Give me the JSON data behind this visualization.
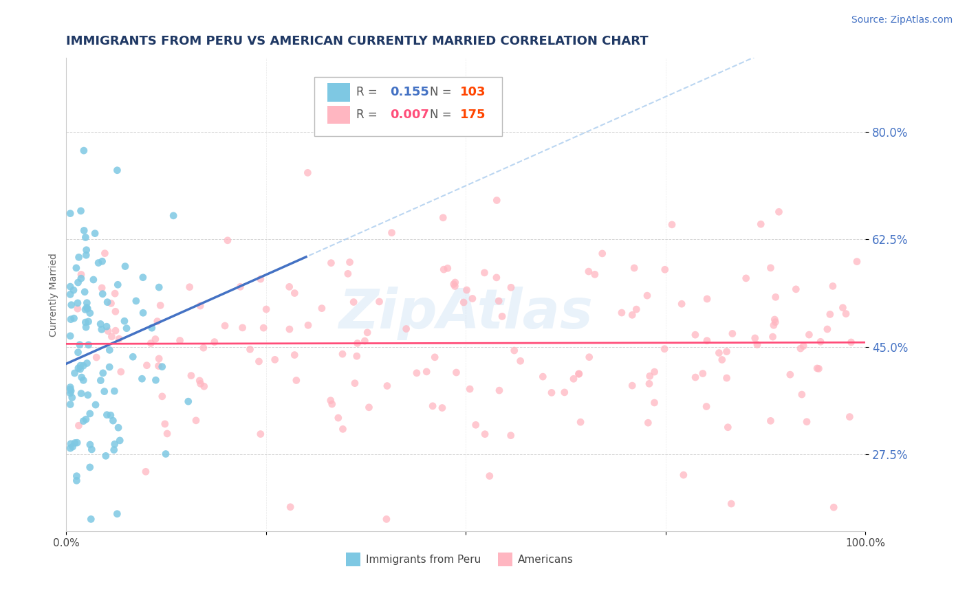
{
  "title": "IMMIGRANTS FROM PERU VS AMERICAN CURRENTLY MARRIED CORRELATION CHART",
  "source": "Source: ZipAtlas.com",
  "ylabel": "Currently Married",
  "watermark": "ZipAtlas",
  "xlim": [
    0.0,
    1.0
  ],
  "ylim": [
    0.15,
    0.92
  ],
  "yticks": [
    0.275,
    0.45,
    0.625,
    0.8
  ],
  "yticklabels": [
    "27.5%",
    "45.0%",
    "62.5%",
    "80.0%"
  ],
  "legend_blue_r": "0.155",
  "legend_blue_n": "103",
  "legend_pink_r": "0.007",
  "legend_pink_n": "175",
  "legend_blue_label": "Immigrants from Peru",
  "legend_pink_label": "Americans",
  "blue_color": "#7EC8E3",
  "pink_color": "#FFB6C1",
  "blue_line_color": "#4472C4",
  "pink_line_color": "#FF4D79",
  "title_color": "#1F3864",
  "source_color": "#4472C4",
  "r_value_blue_color": "#4472C4",
  "r_value_pink_color": "#FF4D79",
  "n_value_blue_color": "#FF4500",
  "n_value_pink_color": "#FF4500",
  "blue_n": 103,
  "pink_n": 175
}
